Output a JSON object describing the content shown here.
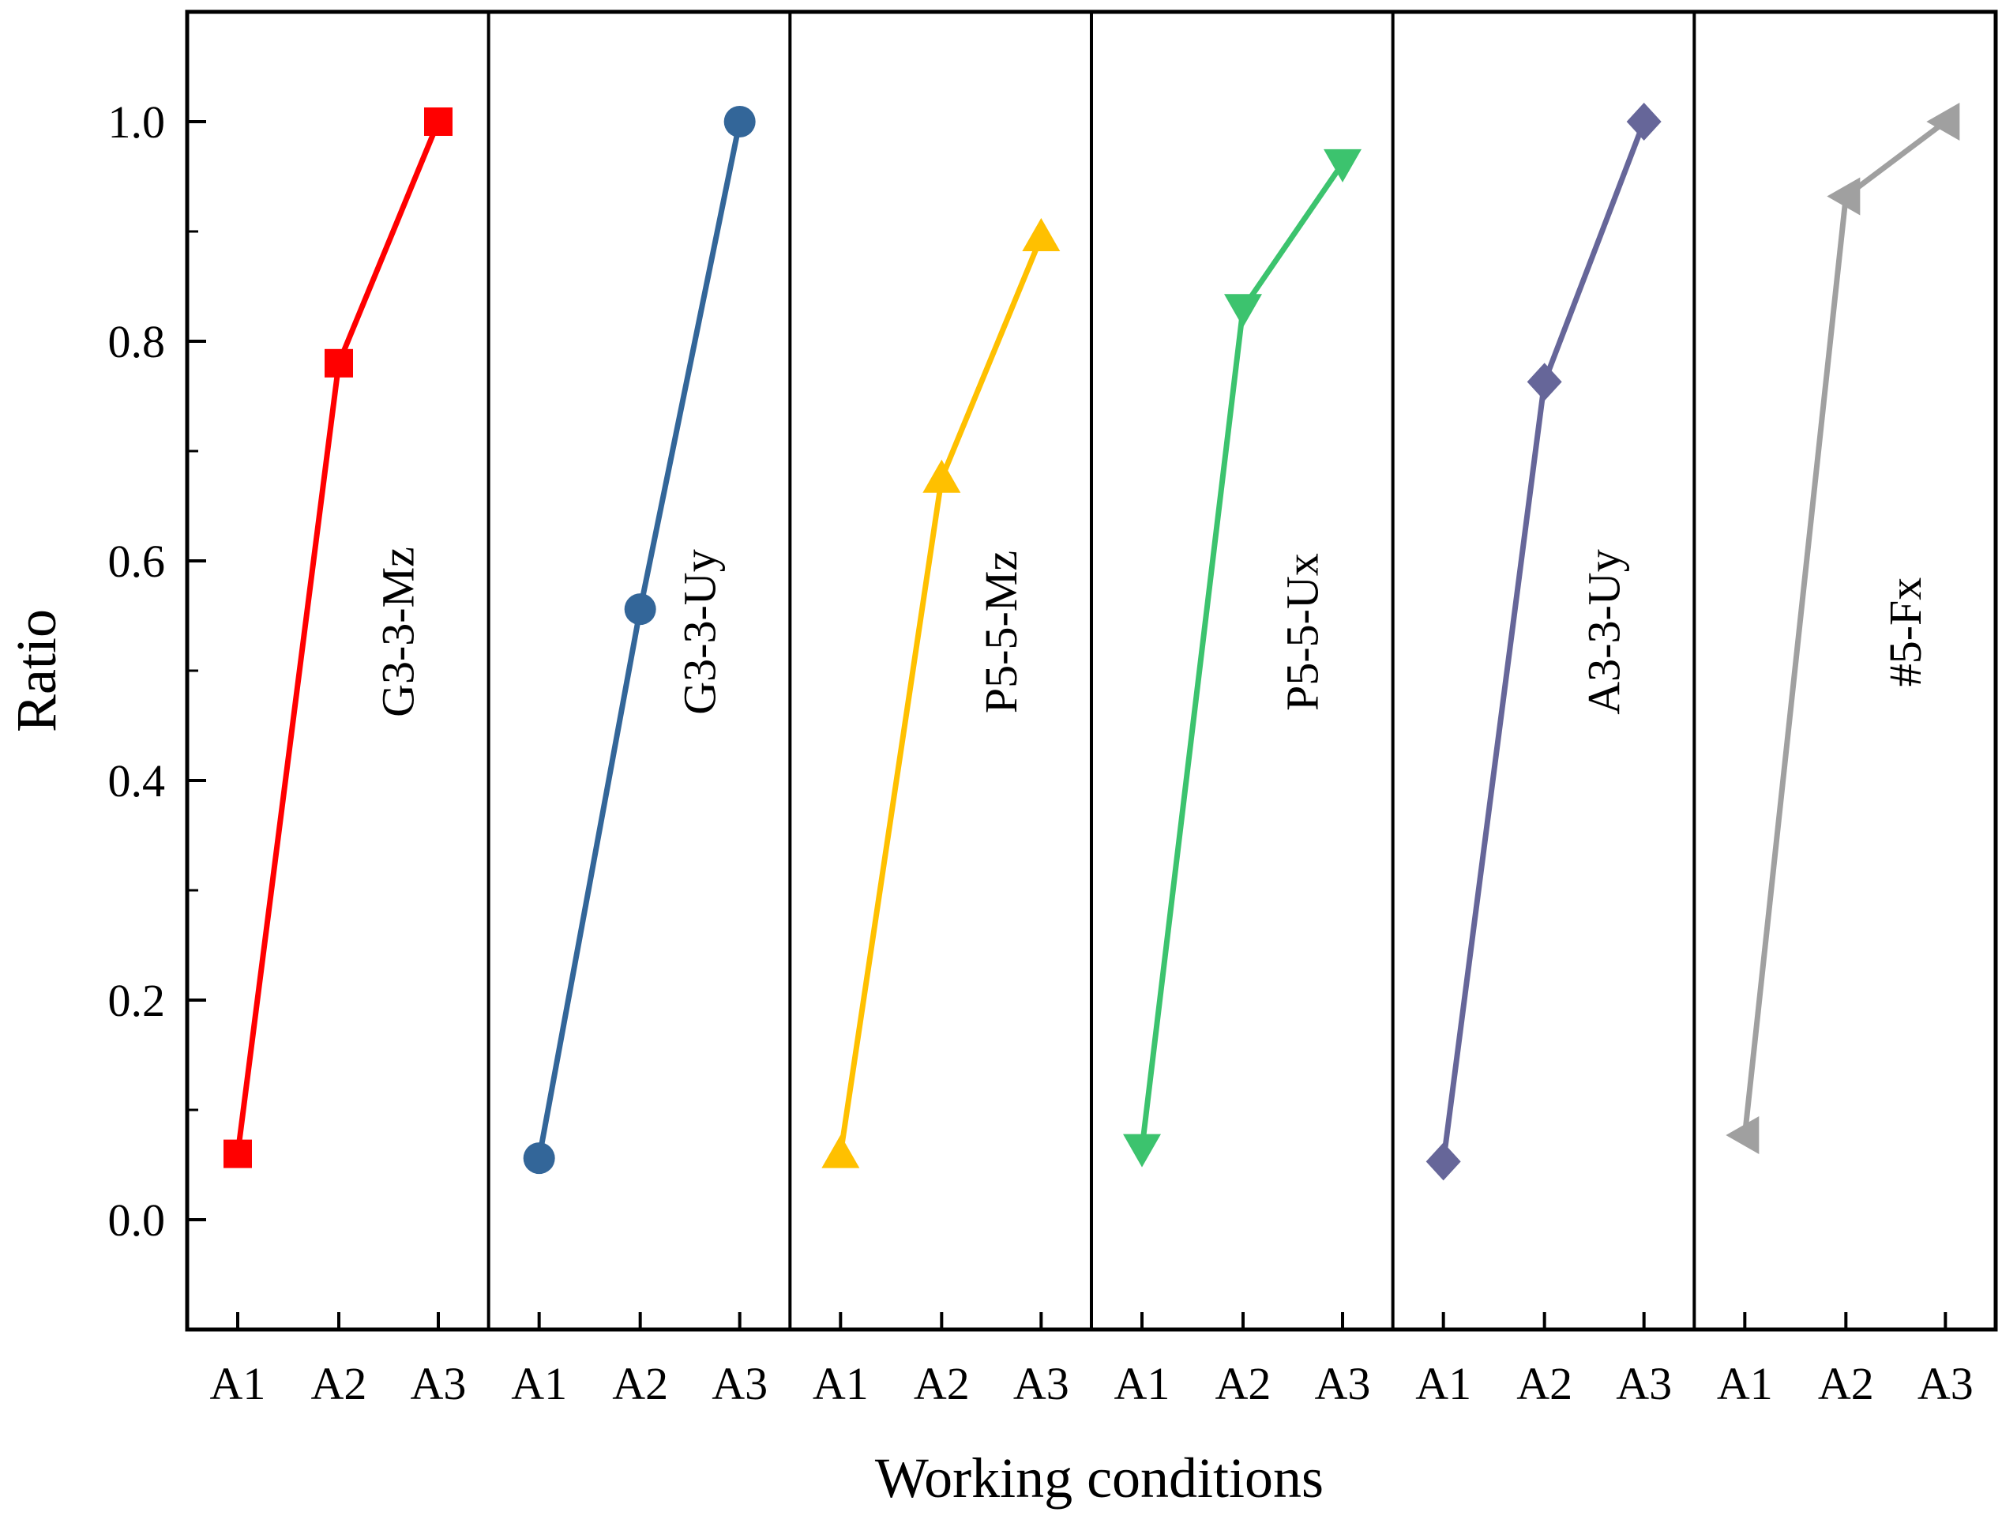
{
  "chart_data": {
    "type": "line",
    "xlabel": "Working conditions",
    "ylabel": "Ratio",
    "ylim": [
      -0.1,
      1.1
    ],
    "yticks": [
      "0.0",
      "0.2",
      "0.4",
      "0.6",
      "0.8",
      "1.0"
    ],
    "ytick_values": [
      0.0,
      0.2,
      0.4,
      0.6,
      0.8,
      1.0
    ],
    "categories": [
      "A1",
      "A2",
      "A3"
    ],
    "series": [
      {
        "name": "G3-3-Mz",
        "color": "#ff0000",
        "marker": "square",
        "values": [
          0.06,
          0.78,
          1.0
        ]
      },
      {
        "name": "G3-3-Uy",
        "color": "#336699",
        "marker": "circle",
        "values": [
          0.056,
          0.556,
          1.0
        ]
      },
      {
        "name": "P5-5-Mz",
        "color": "#ffc000",
        "marker": "triangle-up",
        "values": [
          0.06,
          0.675,
          0.895
        ]
      },
      {
        "name": "P5-5-Ux",
        "color": "#3cc36e",
        "marker": "triangle-down",
        "values": [
          0.065,
          0.83,
          0.962
        ]
      },
      {
        "name": "A3-3-Uy",
        "color": "#666699",
        "marker": "diamond",
        "values": [
          0.053,
          0.763,
          1.0
        ]
      },
      {
        "name": "#5-Fx",
        "color": "#a0a0a0",
        "marker": "triangle-left",
        "values": [
          0.077,
          0.932,
          1.0
        ]
      }
    ]
  }
}
